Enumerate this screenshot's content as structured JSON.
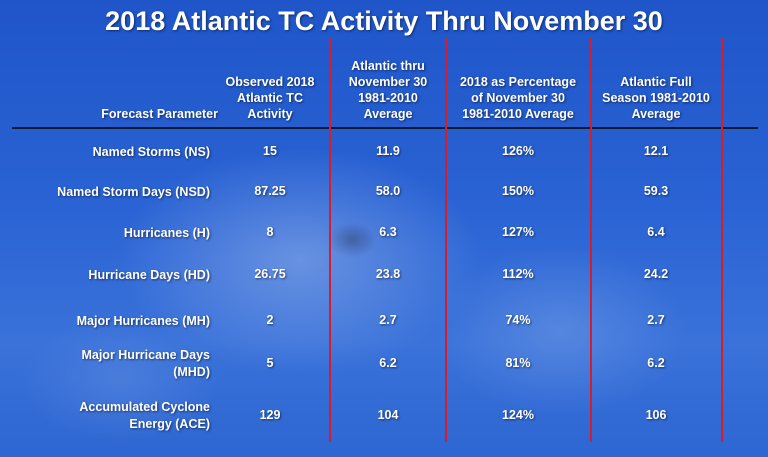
{
  "chart_data": {
    "type": "table",
    "title": "2018 Atlantic TC Activity Thru November 30",
    "columns": [
      {
        "lines": [
          "Forecast Parameter"
        ]
      },
      {
        "lines": [
          "Observed 2018",
          "Atlantic TC",
          "Activity"
        ]
      },
      {
        "lines": [
          "Atlantic thru",
          "November 30",
          "1981-2010",
          "Average"
        ]
      },
      {
        "lines": [
          "2018 as Percentage",
          "of November 30",
          "1981-2010 Average"
        ]
      },
      {
        "lines": [
          "Atlantic Full",
          "Season 1981-2010",
          "Average"
        ]
      }
    ],
    "rows": [
      {
        "label": [
          "Named Storms (NS)"
        ],
        "values": [
          "15",
          "11.9",
          "126%",
          "12.1"
        ]
      },
      {
        "label": [
          "Named Storm Days (NSD)"
        ],
        "values": [
          "87.25",
          "58.0",
          "150%",
          "59.3"
        ]
      },
      {
        "label": [
          "Hurricanes (H)"
        ],
        "values": [
          "8",
          "6.3",
          "127%",
          "6.4"
        ]
      },
      {
        "label": [
          "Hurricane Days (HD)"
        ],
        "values": [
          "26.75",
          "23.8",
          "112%",
          "24.2"
        ]
      },
      {
        "label": [
          "Major Hurricanes (MH)"
        ],
        "values": [
          "2",
          "2.7",
          "74%",
          "2.7"
        ]
      },
      {
        "label": [
          "Major Hurricane Days",
          "(MHD)"
        ],
        "values": [
          "5",
          "6.2",
          "81%",
          "6.2"
        ]
      },
      {
        "label": [
          "Accumulated Cyclone",
          "Energy (ACE)"
        ],
        "values": [
          "129",
          "104",
          "124%",
          "106"
        ]
      }
    ]
  },
  "colors": {
    "divider_red": "#d41f2a",
    "header_rule": "#0d1a33",
    "text": "#ffffff"
  }
}
